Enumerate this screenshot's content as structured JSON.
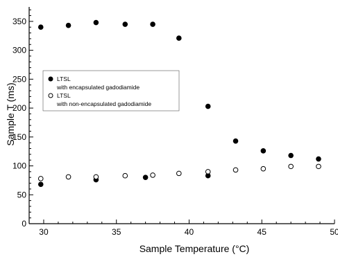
{
  "chart_data": {
    "type": "scatter",
    "xlabel": "Sample Temperature (°C)",
    "ylabel": "Sample T (ms)",
    "xlim": [
      29,
      50
    ],
    "ylim": [
      0,
      375
    ],
    "x_ticks": [
      "30",
      "35",
      "40",
      "45",
      "50"
    ],
    "y_ticks": [
      "0",
      "50",
      "100",
      "150",
      "200",
      "250",
      "300",
      "350"
    ],
    "legend_position": "middle-left",
    "series": [
      {
        "name": "LTSL\nwith encapsulated gadodiamide",
        "marker": "filled-circle",
        "color": "#000000",
        "points": [
          [
            29.8,
            68
          ],
          [
            29.8,
            340
          ],
          [
            31.7,
            343
          ],
          [
            33.6,
            76
          ],
          [
            33.6,
            348
          ],
          [
            35.6,
            345
          ],
          [
            37.0,
            80
          ],
          [
            37.5,
            345
          ],
          [
            39.3,
            321
          ],
          [
            41.3,
            83
          ],
          [
            41.3,
            203
          ],
          [
            43.2,
            143
          ],
          [
            45.1,
            126
          ],
          [
            47.0,
            118
          ],
          [
            48.9,
            112
          ]
        ]
      },
      {
        "name": "LTSL\nwith non-encapsulated gadodiamide",
        "marker": "open-circle",
        "color": "#000000",
        "points": [
          [
            29.8,
            78
          ],
          [
            31.7,
            81
          ],
          [
            33.6,
            81
          ],
          [
            35.6,
            83
          ],
          [
            37.5,
            84
          ],
          [
            39.3,
            87
          ],
          [
            41.3,
            90
          ],
          [
            43.2,
            93
          ],
          [
            45.1,
            95
          ],
          [
            47.0,
            99
          ],
          [
            48.9,
            99
          ]
        ]
      }
    ]
  }
}
